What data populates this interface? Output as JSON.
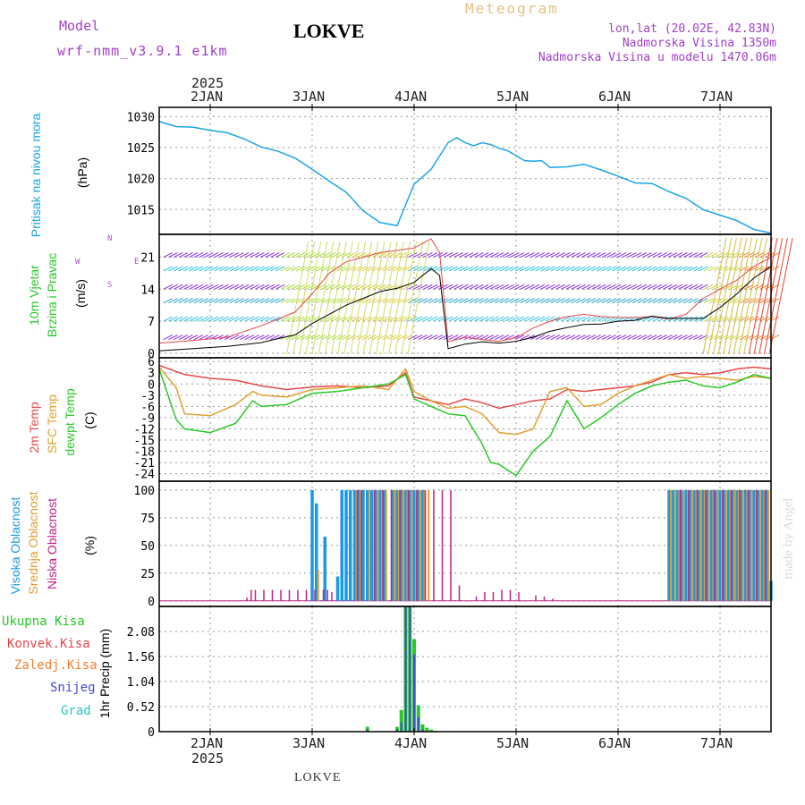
{
  "header": {
    "model_label": "Model",
    "model_name": "wrf-nmm_v3.9.1 e1km",
    "station": "LOKVE",
    "product": "Meteogram",
    "coords": "lon,lat (20.02E, 42.83N)",
    "elevation": "Nadmorska Visina 1350m",
    "model_elevation": "Nadmorska Visina u modelu 1470.06m",
    "footer_station": "LOKVE",
    "watermark": "made by Angel",
    "year": "2025"
  },
  "colors": {
    "pressure": "#1aa6e6",
    "t2m": "#e84848",
    "sfc": "#e0a030",
    "dewpt": "#28c828",
    "high_cloud": "#1a9ae6",
    "mid_cloud": "#e0a030",
    "low_cloud": "#c0208c",
    "total_precip": "#28c828",
    "conv_precip": "#e84848",
    "frz_precip": "#f08030",
    "snow": "#4848d8",
    "hail": "#28c8c8"
  },
  "chart_data": {
    "x_axis": {
      "day_labels": [
        "2JAN",
        "3JAN",
        "4JAN",
        "5JAN",
        "6JAN",
        "7JAN"
      ],
      "year_label": "2025",
      "x_min_hours": 0,
      "x_max_hours": 144
    },
    "panels": [
      {
        "id": "pressure",
        "type": "line",
        "ylabel_left": "Pritisak na nivou mora",
        "ylabel_unit": "(hPa)",
        "yticks": [
          1015,
          1020,
          1025,
          1030
        ],
        "ylim": [
          1011,
          1031.5
        ],
        "series": [
          {
            "name": "Pritisak na nivou mora",
            "x": [
              0,
              4,
              8,
              12,
              16,
              20,
              24,
              28,
              32,
              36,
              40,
              44,
              48,
              52,
              56,
              60,
              64,
              68,
              70,
              72,
              74,
              76,
              78,
              80,
              82,
              84,
              86,
              88,
              90,
              92,
              96,
              100,
              104,
              108,
              112,
              116,
              120,
              124,
              128,
              132,
              136,
              140,
              144
            ],
            "y": [
              1029.2,
              1028.4,
              1028.3,
              1027.8,
              1027.4,
              1026.4,
              1025.1,
              1024.4,
              1023.3,
              1021.5,
              1019.6,
              1017.8,
              1014.8,
              1012.9,
              1012.4,
              1019.1,
              1021.5,
              1025.8,
              1026.6,
              1025.8,
              1025.3,
              1025.8,
              1025.5,
              1024.9,
              1024.5,
              1023.7,
              1022.9,
              1022.8,
              1022.9,
              1021.8,
              1021.9,
              1022.3,
              1021.4,
              1020.4,
              1019.3,
              1019.2,
              1017.9,
              1016.8,
              1015.0,
              1014.1,
              1013.2,
              1011.8,
              1011.2
            ]
          }
        ]
      },
      {
        "id": "wind",
        "type": "line",
        "ylabel_left1": "10m Vjetar",
        "ylabel_left2": "Brzina i Pravac",
        "ylabel_unit": "(m/s)",
        "compass": {
          "n": "N",
          "e": "E",
          "s": "S",
          "w": "W"
        },
        "yticks": [
          0,
          7,
          14,
          21
        ],
        "ylim": [
          -1,
          26
        ],
        "series": [
          {
            "name": "speed",
            "x": [
              0,
              8,
              16,
              24,
              28,
              32,
              36,
              40,
              44,
              48,
              52,
              56,
              60,
              64,
              66,
              68,
              72,
              76,
              80,
              84,
              88,
              92,
              96,
              100,
              104,
              108,
              112,
              116,
              120,
              124,
              128,
              132,
              136,
              140,
              144
            ],
            "y": [
              0.5,
              1.0,
              1.5,
              2.3,
              3.2,
              4.0,
              6.5,
              8.5,
              10.5,
              12.0,
              13.5,
              14.2,
              15.5,
              18.5,
              17.0,
              1.0,
              2.0,
              2.5,
              2.2,
              2.6,
              3.5,
              4.8,
              5.6,
              6.3,
              6.4,
              7.0,
              7.2,
              8.1,
              7.6,
              7.6,
              7.6,
              10.0,
              13.0,
              16.5,
              19.0
            ]
          },
          {
            "name": "gust",
            "x": [
              0,
              8,
              16,
              24,
              28,
              32,
              36,
              40,
              44,
              48,
              52,
              56,
              60,
              64,
              66,
              68,
              72,
              76,
              80,
              84,
              88,
              92,
              96,
              100,
              104,
              108,
              112,
              116,
              120,
              124,
              128,
              132,
              136,
              140,
              144
            ],
            "y": [
              2.2,
              2.8,
              3.5,
              6.0,
              7.5,
              9.0,
              13.0,
              17.5,
              20.0,
              21.0,
              22.0,
              22.5,
              23.0,
              25.0,
              22.0,
              2.5,
              3.5,
              3.0,
              2.6,
              3.4,
              5.5,
              7.0,
              8.0,
              8.5,
              8.0,
              7.8,
              7.8,
              8.0,
              7.5,
              8.5,
              12.0,
              14.0,
              16.0,
              19.0,
              21.0
            ]
          }
        ]
      },
      {
        "id": "temp",
        "type": "line",
        "ylabel_left1": "2m Temp",
        "ylabel_left2": "SFC Temp",
        "ylabel_left3": "dewpt Temp",
        "ylabel_unit": "(C)",
        "yticks": [
          6,
          3,
          0,
          -3,
          -6,
          -9,
          -12,
          -15,
          -18,
          -21,
          -24
        ],
        "ylim": [
          -26,
          7
        ],
        "series": [
          {
            "name": "2m Temp",
            "x": [
              0,
              6,
              12,
              18,
              24,
              30,
              36,
              42,
              48,
              54,
              58,
              60,
              64,
              68,
              72,
              76,
              80,
              84,
              88,
              92,
              96,
              100,
              104,
              108,
              112,
              116,
              120,
              124,
              128,
              132,
              136,
              140,
              144
            ],
            "y": [
              5.0,
              2.5,
              1.5,
              1.0,
              -0.5,
              -1.5,
              -0.8,
              -0.5,
              -1.0,
              -0.5,
              3.0,
              -3.5,
              -4.5,
              -5.5,
              -4.0,
              -5.0,
              -6.5,
              -5.5,
              -4.5,
              -4.0,
              -1.5,
              -2.0,
              -1.5,
              -1.0,
              -0.5,
              0.5,
              2.5,
              3.0,
              2.5,
              3.0,
              4.0,
              4.5,
              4.0
            ]
          },
          {
            "name": "SFC Temp",
            "x": [
              0,
              4,
              6,
              12,
              18,
              22,
              24,
              30,
              36,
              42,
              48,
              54,
              58,
              60,
              64,
              68,
              72,
              76,
              80,
              84,
              88,
              92,
              96,
              100,
              104,
              108,
              112,
              116,
              120,
              124,
              128,
              132,
              136,
              140,
              144
            ],
            "y": [
              4.5,
              -1.0,
              -8.0,
              -8.5,
              -5.5,
              -2.0,
              -3.0,
              -3.5,
              -1.5,
              -1.0,
              -0.5,
              -1.5,
              4.0,
              -2.0,
              -4.5,
              -6.5,
              -6.0,
              -8.0,
              -13.0,
              -13.5,
              -12.0,
              -2.0,
              -1.0,
              -6.0,
              -5.5,
              -2.5,
              -0.5,
              1.0,
              2.5,
              1.5,
              2.0,
              1.5,
              1.0,
              2.0,
              1.5
            ]
          },
          {
            "name": "dewpt Temp",
            "x": [
              0,
              4,
              6,
              12,
              18,
              22,
              24,
              30,
              36,
              42,
              48,
              54,
              58,
              60,
              64,
              68,
              72,
              76,
              78,
              80,
              84,
              88,
              92,
              96,
              100,
              104,
              108,
              112,
              116,
              120,
              124,
              128,
              132,
              136,
              140,
              144
            ],
            "y": [
              4.0,
              -9.5,
              -12.0,
              -13.0,
              -10.5,
              -4.5,
              -6.0,
              -5.5,
              -2.5,
              -2.0,
              -1.0,
              0.0,
              2.5,
              -4.0,
              -6.0,
              -8.0,
              -8.5,
              -16.0,
              -21.0,
              -21.5,
              -24.5,
              -18.0,
              -14.0,
              -4.5,
              -12.0,
              -9.0,
              -5.5,
              -2.5,
              -0.5,
              0.5,
              1.0,
              -0.5,
              -1.0,
              0.5,
              2.5,
              1.5
            ]
          }
        ]
      },
      {
        "id": "cloud",
        "type": "bar",
        "ylabel_left1": "Visoka Oblacnost",
        "ylabel_left2": "Srednja Oblacnost",
        "ylabel_left3": "Niska Oblacnost",
        "ylabel_unit": "(%)",
        "yticks": [
          0,
          25,
          50,
          75,
          100
        ],
        "ylim": [
          -5,
          108
        ],
        "series": [
          {
            "name": "Visoka Oblacnost",
            "x": [
              36,
              37,
              38,
              39,
              40,
              41,
              42,
              43,
              44,
              45,
              46,
              47,
              48,
              49,
              50,
              51,
              52,
              53,
              54,
              55,
              56,
              57,
              58,
              59,
              60,
              61,
              62,
              63,
              64,
              65,
              66,
              120,
              121,
              122,
              123,
              124,
              125,
              126,
              127,
              128,
              129,
              130,
              131,
              132,
              133,
              134,
              135,
              136,
              137,
              138,
              139,
              140,
              141,
              142,
              143,
              144
            ],
            "y": [
              100,
              88,
              0,
              58,
              0,
              0,
              22,
              100,
              100,
              100,
              100,
              100,
              100,
              100,
              100,
              100,
              100,
              100,
              0,
              100,
              100,
              100,
              100,
              100,
              100,
              100,
              100,
              0,
              0,
              0,
              0,
              100,
              100,
              100,
              100,
              100,
              100,
              100,
              100,
              100,
              100,
              100,
              100,
              100,
              100,
              100,
              100,
              100,
              100,
              100,
              100,
              100,
              100,
              100,
              100,
              18
            ]
          },
          {
            "name": "Srednja Oblacnost",
            "x": [
              37,
              40,
              46,
              47,
              49,
              51,
              52,
              53,
              55,
              56,
              57,
              58,
              59,
              60,
              61,
              62,
              63,
              64,
              120,
              121,
              122,
              123,
              124,
              125,
              126,
              127,
              128,
              129,
              130,
              131,
              132,
              133,
              134,
              135,
              136,
              137,
              138,
              139,
              140,
              141,
              142,
              143
            ],
            "y": [
              28,
              0,
              100,
              100,
              100,
              100,
              100,
              100,
              100,
              100,
              100,
              100,
              100,
              100,
              100,
              100,
              100,
              0,
              100,
              100,
              100,
              100,
              100,
              100,
              100,
              100,
              100,
              100,
              100,
              100,
              100,
              100,
              100,
              100,
              100,
              100,
              100,
              100,
              100,
              100,
              100,
              100
            ]
          },
          {
            "name": "Niska Oblacnost",
            "x": [
              20,
              21,
              22,
              24,
              26,
              28,
              30,
              32,
              34,
              36,
              37,
              38,
              39,
              40,
              42,
              44,
              46,
              47,
              48,
              50,
              52,
              54,
              56,
              58,
              60,
              62,
              64,
              66,
              68,
              70,
              72,
              74,
              76,
              78,
              80,
              82,
              84,
              86,
              88,
              90,
              92,
              120,
              122,
              124,
              126,
              128,
              130,
              132,
              134,
              136,
              138,
              140,
              142,
              144
            ],
            "y": [
              3,
              10,
              10,
              10,
              10,
              10,
              10,
              10,
              10,
              10,
              0,
              10,
              10,
              8,
              0,
              0,
              100,
              100,
              0,
              100,
              100,
              100,
              100,
              100,
              100,
              100,
              100,
              100,
              100,
              14,
              0,
              4,
              8,
              8,
              10,
              10,
              8,
              0,
              5,
              4,
              2,
              0,
              100,
              100,
              100,
              100,
              100,
              100,
              100,
              100,
              100,
              100,
              100,
              0
            ]
          }
        ]
      },
      {
        "id": "precip",
        "type": "bar",
        "labels": [
          "Ukupna Kisa",
          "Konvek.Kisa",
          "Zaledj.Kisa",
          "Snijeg",
          "Grad"
        ],
        "ylabel_unit": "1hr Precip (mm)",
        "yticks": [
          0,
          0.52,
          1.04,
          1.56,
          2.08
        ],
        "ylim": [
          0,
          2.6
        ],
        "series": [
          {
            "name": "Ukupna Kisa",
            "x": [
              49,
              56,
              57,
              58,
              59,
              60,
              61,
              62,
              63,
              64,
              65
            ],
            "y": [
              0.1,
              0.1,
              0.45,
              2.6,
              2.6,
              1.92,
              0.55,
              0.15,
              0.08,
              0.04,
              0.02
            ]
          },
          {
            "name": "Snijeg",
            "x": [
              49,
              56,
              57,
              58,
              59,
              60,
              61,
              62
            ],
            "y": [
              0.05,
              0.05,
              0.2,
              2.6,
              2.6,
              1.6,
              0.3,
              0.05
            ]
          }
        ]
      }
    ]
  }
}
